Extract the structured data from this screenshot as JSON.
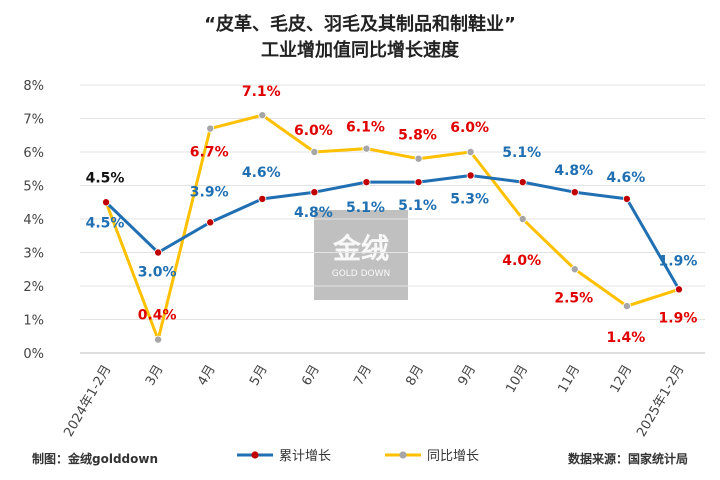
{
  "title_line1": "“皮革、毛皮、羽毛及其制品和制鞋业”",
  "title_line2": "工业增加值同比增长速度",
  "footer": {
    "left": "制图：金绒golddown",
    "right": "数据来源：国家统计局"
  },
  "watermark": {
    "main": "金绒",
    "sub": "GOLD DOWN"
  },
  "chart_data": {
    "type": "line",
    "categories": [
      "2024年1-2月",
      "3月",
      "4月",
      "5月",
      "6月",
      "7月",
      "8月",
      "9月",
      "10月",
      "11月",
      "12月",
      "2025年1-2月"
    ],
    "ylim": [
      0,
      8
    ],
    "yticks": [
      "0%",
      "1%",
      "2%",
      "3%",
      "4%",
      "5%",
      "6%",
      "7%",
      "8%"
    ],
    "grid": true,
    "legend_position": "bottom",
    "series": [
      {
        "name": "累计增长",
        "color": "#1f6fb2",
        "marker_color": "#c00000",
        "values": [
          4.5,
          3.0,
          3.9,
          4.6,
          4.8,
          5.1,
          5.1,
          5.3,
          5.1,
          4.8,
          4.6,
          1.9
        ],
        "labels": [
          "4.5%",
          "3.0%",
          "3.9%",
          "4.6%",
          "4.8%",
          "5.1%",
          "5.1%",
          "5.3%",
          "5.1%",
          "4.8%",
          "4.6%",
          "1.9%"
        ],
        "label_color": "#1f6fb2"
      },
      {
        "name": "同比增长",
        "color": "#ffc000",
        "marker_color": "#a6a6a6",
        "values": [
          4.5,
          0.4,
          6.7,
          7.1,
          6.0,
          6.1,
          5.8,
          6.0,
          4.0,
          2.5,
          1.4,
          1.9
        ],
        "labels": [
          "4.5%",
          "0.4%",
          "6.7%",
          "7.1%",
          "6.0%",
          "6.1%",
          "5.8%",
          "6.0%",
          "4.0%",
          "2.5%",
          "1.4%",
          "1.9%"
        ],
        "label_color": "#e00000"
      }
    ]
  }
}
